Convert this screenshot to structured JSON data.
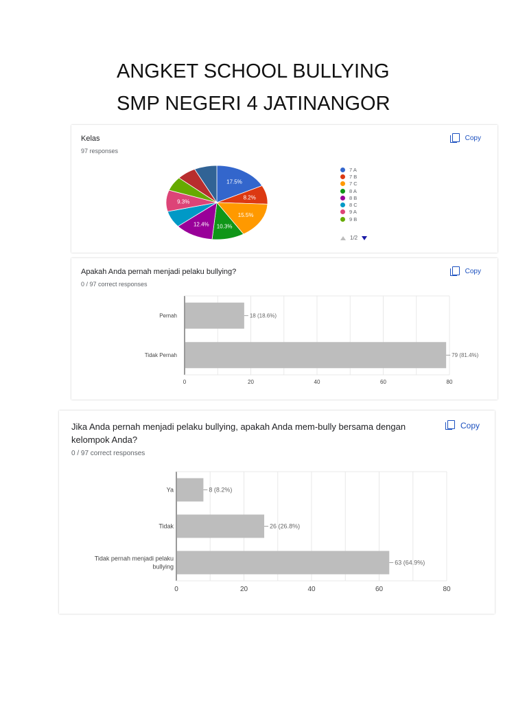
{
  "document": {
    "title_line1": "ANGKET SCHOOL BULLYING",
    "title_line2": "SMP NEGERI 4 JATINANGOR"
  },
  "copy_label": "Copy",
  "charts": [
    {
      "question": "Kelas",
      "responses_text": "97 responses",
      "pager": "1/2"
    },
    {
      "question": "Apakah Anda pernah menjadi pelaku bullying?",
      "responses_text": "0 / 97 correct responses"
    },
    {
      "question": "Jika Anda pernah menjadi pelaku bullying, apakah Anda mem-bully bersama dengan kelompok Anda?",
      "responses_text": "0 / 97 correct responses"
    }
  ],
  "chart_data": [
    {
      "type": "pie",
      "title": "Kelas",
      "legend_position": "right",
      "slices": [
        {
          "label": "7 A",
          "value": 17.5,
          "color": "#3366cc",
          "display": "17.5%"
        },
        {
          "label": "7 B",
          "value": 8.2,
          "color": "#dc3912",
          "display": "8.2%"
        },
        {
          "label": "7 C",
          "value": 15.5,
          "color": "#ff9900",
          "display": "15.5%"
        },
        {
          "label": "8 A",
          "value": 10.3,
          "color": "#109618",
          "display": "10.3%"
        },
        {
          "label": "8 B",
          "value": 12.4,
          "color": "#990099",
          "display": "12.4%"
        },
        {
          "label": "8 C",
          "value": 7.2,
          "color": "#0099c6",
          "display": ""
        },
        {
          "label": "9 A",
          "value": 9.3,
          "color": "#dd4477",
          "display": "9.3%"
        },
        {
          "label": "9 B",
          "value": 6.2,
          "color": "#66aa00",
          "display": ""
        },
        {
          "label": "",
          "value": 6.2,
          "color": "#b82e2e",
          "display": ""
        },
        {
          "label": "",
          "value": 7.2,
          "color": "#316395",
          "display": ""
        }
      ],
      "legend": [
        {
          "label": "7 A",
          "color": "#3366cc"
        },
        {
          "label": "7 B",
          "color": "#dc3912"
        },
        {
          "label": "7 C",
          "color": "#ff9900"
        },
        {
          "label": "8 A",
          "color": "#109618"
        },
        {
          "label": "8 B",
          "color": "#990099"
        },
        {
          "label": "8 C",
          "color": "#0099c6"
        },
        {
          "label": "9 A",
          "color": "#dd4477"
        },
        {
          "label": "9 B",
          "color": "#66aa00"
        }
      ]
    },
    {
      "type": "bar",
      "orientation": "horizontal",
      "title": "Apakah Anda pernah menjadi pelaku bullying?",
      "categories": [
        "Pernah",
        "Tidak Pernah"
      ],
      "values": [
        18,
        79
      ],
      "value_labels": [
        "18 (18.6%)",
        "79 (81.4%)"
      ],
      "xlim": [
        0,
        80
      ],
      "ticks": [
        0,
        20,
        40,
        60,
        80
      ],
      "bar_color": "#bdbdbd",
      "grid": true
    },
    {
      "type": "bar",
      "orientation": "horizontal",
      "title": "Jika Anda pernah menjadi pelaku bullying, apakah Anda mem-bully bersama dengan kelompok Anda?",
      "categories": [
        "Ya",
        "Tidak",
        "Tidak pernah menjadi pelaku bullying"
      ],
      "category_lines": [
        [
          "Ya"
        ],
        [
          "Tidak"
        ],
        [
          "Tidak pernah menjadi pelaku",
          "bullying"
        ]
      ],
      "values": [
        8,
        26,
        63
      ],
      "value_labels": [
        "8 (8.2%)",
        "26 (26.8%)",
        "63 (64.9%)"
      ],
      "xlim": [
        0,
        80
      ],
      "ticks": [
        0,
        20,
        40,
        60,
        80
      ],
      "bar_color": "#bdbdbd",
      "grid": true
    }
  ]
}
